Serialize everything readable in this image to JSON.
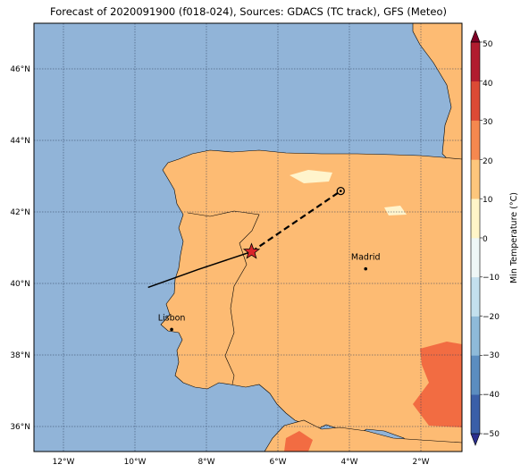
{
  "title": "Forecast of 2020091900 (f018-024), Sources: GDACS (TC track), GFS (Meteo)",
  "map": {
    "lon_range": [
      -13,
      -1
    ],
    "lat_range": [
      35.3,
      47.3
    ],
    "lon_ticks": [
      {
        "v": -12,
        "label": "12°W"
      },
      {
        "v": -10,
        "label": "10°W"
      },
      {
        "v": -8,
        "label": "8°W"
      },
      {
        "v": -6,
        "label": "6°W"
      },
      {
        "v": -4,
        "label": "4°W"
      },
      {
        "v": -2,
        "label": "2°W"
      }
    ],
    "lat_ticks": [
      {
        "v": 36,
        "label": "36°N"
      },
      {
        "v": 38,
        "label": "38°N"
      },
      {
        "v": 40,
        "label": "40°N"
      },
      {
        "v": 42,
        "label": "42°N"
      },
      {
        "v": 44,
        "label": "44°N"
      },
      {
        "v": 46,
        "label": "46°N"
      }
    ],
    "cities": [
      {
        "name": "Madrid",
        "lon": -3.7,
        "lat": 40.42
      },
      {
        "name": "Lisbon",
        "lon": -9.14,
        "lat": 38.72
      }
    ],
    "track_observed": [
      [
        -9.8,
        39.9
      ],
      [
        -8.4,
        40.4
      ],
      [
        -6.9,
        40.9
      ]
    ],
    "track_forecast": [
      [
        -6.9,
        40.9
      ],
      [
        -4.4,
        42.6
      ]
    ],
    "current_position": [
      -6.9,
      40.9
    ],
    "forecast_position": [
      -4.4,
      42.6
    ]
  },
  "colorbar": {
    "label": "Min Temperature (°C)",
    "ticks": [
      "−50",
      "−40",
      "−30",
      "−20",
      "−10",
      "0",
      "10",
      "20",
      "30",
      "40",
      "50"
    ],
    "colors": [
      "#2b2f8f",
      "#3a5fa8",
      "#5b8dc0",
      "#8ebad9",
      "#c3e0ee",
      "#eef7f6",
      "#fff5c8",
      "#fdc67c",
      "#f5884f",
      "#dc4a35",
      "#b11c2f",
      "#7f0026"
    ]
  },
  "colors": {
    "sea": "#91b4d8",
    "land": "#fdbb73",
    "warm": "#f26c42",
    "cold_patch": "#fff4cc",
    "track": "#000000",
    "star": "#d9262b"
  }
}
